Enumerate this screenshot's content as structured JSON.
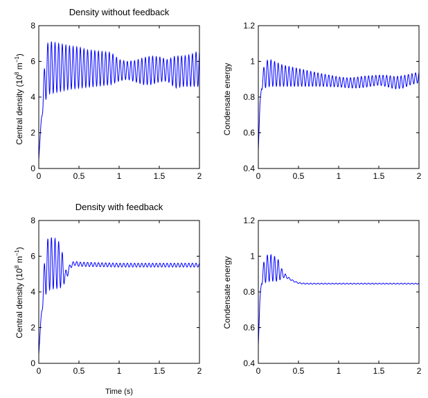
{
  "chart_data": [
    {
      "type": "line",
      "title": "Density without feedback",
      "xlabel": "",
      "ylabel_text": "Central density (10",
      "ylabel_sup1": "8",
      "ylabel_mid": " m",
      "ylabel_sup2": "−1",
      "ylabel_end": ")",
      "xlim": [
        0,
        2
      ],
      "ylim": [
        0,
        8
      ],
      "xticks": [
        0,
        0.5,
        1,
        1.5,
        2
      ],
      "yticks": [
        0,
        2,
        4,
        6,
        8
      ],
      "xtick_labels": [
        "0",
        "0.5",
        "1",
        "1.5",
        "2"
      ],
      "ytick_labels": [
        "0",
        "2",
        "4",
        "6",
        "8"
      ],
      "grid": false,
      "series_color": "#0000ff",
      "series": [
        {
          "x": [
            0,
            0.02,
            0.04,
            0.06,
            0.08,
            0.1,
            0.12,
            0.14,
            0.16,
            0.2,
            0.25,
            0.3,
            0.4,
            0.5,
            0.6,
            0.7,
            0.8,
            0.9,
            1.0,
            1.1,
            1.2,
            1.3,
            1.4,
            1.5,
            1.6,
            1.7,
            1.8,
            1.9,
            2.0
          ],
          "mean": [
            0.5,
            2.0,
            3.2,
            4.2,
            5.0,
            5.5,
            5.6,
            5.65,
            5.65,
            5.65,
            5.65,
            5.65,
            5.65,
            5.65,
            5.6,
            5.6,
            5.6,
            5.6,
            5.5,
            5.5,
            5.45,
            5.45,
            5.5,
            5.55,
            5.5,
            5.4,
            5.45,
            5.5,
            5.6
          ],
          "amplitude": [
            0,
            0,
            0.3,
            0.8,
            1.3,
            1.45,
            1.45,
            1.45,
            1.45,
            1.4,
            1.35,
            1.3,
            1.2,
            1.15,
            1.05,
            1.0,
            0.95,
            0.9,
            0.6,
            0.5,
            0.6,
            0.75,
            0.8,
            0.7,
            0.6,
            0.9,
            0.85,
            0.9,
            1.0
          ],
          "period_s": 0.045
        }
      ]
    },
    {
      "type": "line",
      "title": "",
      "xlabel": "",
      "ylabel": "Condensate energy",
      "xlim": [
        0,
        2
      ],
      "ylim": [
        0.4,
        1.2
      ],
      "xticks": [
        0,
        0.5,
        1,
        1.5,
        2
      ],
      "yticks": [
        0.4,
        0.6,
        0.8,
        1.0,
        1.2
      ],
      "xtick_labels": [
        "0",
        "0.5",
        "1",
        "1.5",
        "2"
      ],
      "ytick_labels": [
        "0.4",
        "0.6",
        "0.8",
        "1",
        "1.2"
      ],
      "grid": false,
      "series_color": "#0000ff",
      "series": [
        {
          "x": [
            0,
            0.02,
            0.04,
            0.06,
            0.08,
            0.1,
            0.15,
            0.2,
            0.3,
            0.4,
            0.5,
            0.6,
            0.7,
            0.8,
            0.9,
            1.0,
            1.1,
            1.2,
            1.3,
            1.4,
            1.5,
            1.6,
            1.7,
            1.8,
            1.9,
            2.0
          ],
          "mean": [
            0.5,
            0.76,
            0.86,
            0.9,
            0.92,
            0.93,
            0.935,
            0.93,
            0.92,
            0.915,
            0.91,
            0.905,
            0.9,
            0.895,
            0.89,
            0.885,
            0.88,
            0.88,
            0.885,
            0.89,
            0.895,
            0.89,
            0.88,
            0.885,
            0.9,
            0.91
          ],
          "amplitude": [
            0,
            0,
            0.02,
            0.05,
            0.07,
            0.075,
            0.075,
            0.07,
            0.06,
            0.055,
            0.05,
            0.045,
            0.04,
            0.035,
            0.032,
            0.028,
            0.028,
            0.03,
            0.032,
            0.03,
            0.028,
            0.032,
            0.035,
            0.035,
            0.03,
            0.03
          ],
          "period_s": 0.045
        }
      ]
    },
    {
      "type": "line",
      "title": "Density with feedback",
      "xlabel": "Time (s)",
      "ylabel_text": "Central density (10",
      "ylabel_sup1": "8",
      "ylabel_mid": " m",
      "ylabel_sup2": "−1",
      "ylabel_end": ")",
      "xlim": [
        0,
        2
      ],
      "ylim": [
        0,
        8
      ],
      "xticks": [
        0,
        0.5,
        1,
        1.5,
        2
      ],
      "yticks": [
        0,
        2,
        4,
        6,
        8
      ],
      "xtick_labels": [
        "0",
        "0.5",
        "1",
        "1.5",
        "2"
      ],
      "ytick_labels": [
        "0",
        "2",
        "4",
        "6",
        "8"
      ],
      "grid": false,
      "series_color": "#0000ff",
      "series": [
        {
          "x": [
            0,
            0.02,
            0.04,
            0.06,
            0.08,
            0.1,
            0.15,
            0.2,
            0.25,
            0.3,
            0.33,
            0.36,
            0.4,
            0.45,
            0.5,
            1.0,
            1.5,
            2.0
          ],
          "mean": [
            0.5,
            2.0,
            3.2,
            4.2,
            5.0,
            5.5,
            5.6,
            5.6,
            5.5,
            5.2,
            4.9,
            5.1,
            5.5,
            5.6,
            5.55,
            5.5,
            5.5,
            5.5
          ],
          "amplitude": [
            0,
            0,
            0.3,
            0.8,
            1.3,
            1.45,
            1.45,
            1.4,
            1.3,
            0.9,
            0.3,
            0.2,
            0.15,
            0.12,
            0.12,
            0.11,
            0.11,
            0.11
          ],
          "period_s": 0.045
        }
      ]
    },
    {
      "type": "line",
      "title": "",
      "xlabel": "",
      "ylabel": "Condensate energy",
      "xlim": [
        0,
        2
      ],
      "ylim": [
        0.4,
        1.2
      ],
      "xticks": [
        0,
        0.5,
        1,
        1.5,
        2
      ],
      "yticks": [
        0.4,
        0.6,
        0.8,
        1.0,
        1.2
      ],
      "xtick_labels": [
        "0",
        "0.5",
        "1",
        "1.5",
        "2"
      ],
      "ytick_labels": [
        "0.4",
        "0.6",
        "0.8",
        "1",
        "1.2"
      ],
      "grid": false,
      "series_color": "#0000ff",
      "series": [
        {
          "x": [
            0,
            0.02,
            0.04,
            0.06,
            0.08,
            0.1,
            0.15,
            0.2,
            0.25,
            0.3,
            0.35,
            0.4,
            0.45,
            0.5,
            0.55,
            0.6,
            1.0,
            1.5,
            2.0
          ],
          "mean": [
            0.5,
            0.76,
            0.86,
            0.9,
            0.92,
            0.93,
            0.935,
            0.93,
            0.92,
            0.9,
            0.885,
            0.87,
            0.858,
            0.85,
            0.847,
            0.846,
            0.846,
            0.846,
            0.846
          ],
          "amplitude": [
            0,
            0,
            0.02,
            0.05,
            0.07,
            0.075,
            0.075,
            0.07,
            0.06,
            0.02,
            0.008,
            0.004,
            0.003,
            0.003,
            0.003,
            0.003,
            0.003,
            0.003,
            0.003
          ],
          "period_s": 0.045
        }
      ]
    }
  ]
}
